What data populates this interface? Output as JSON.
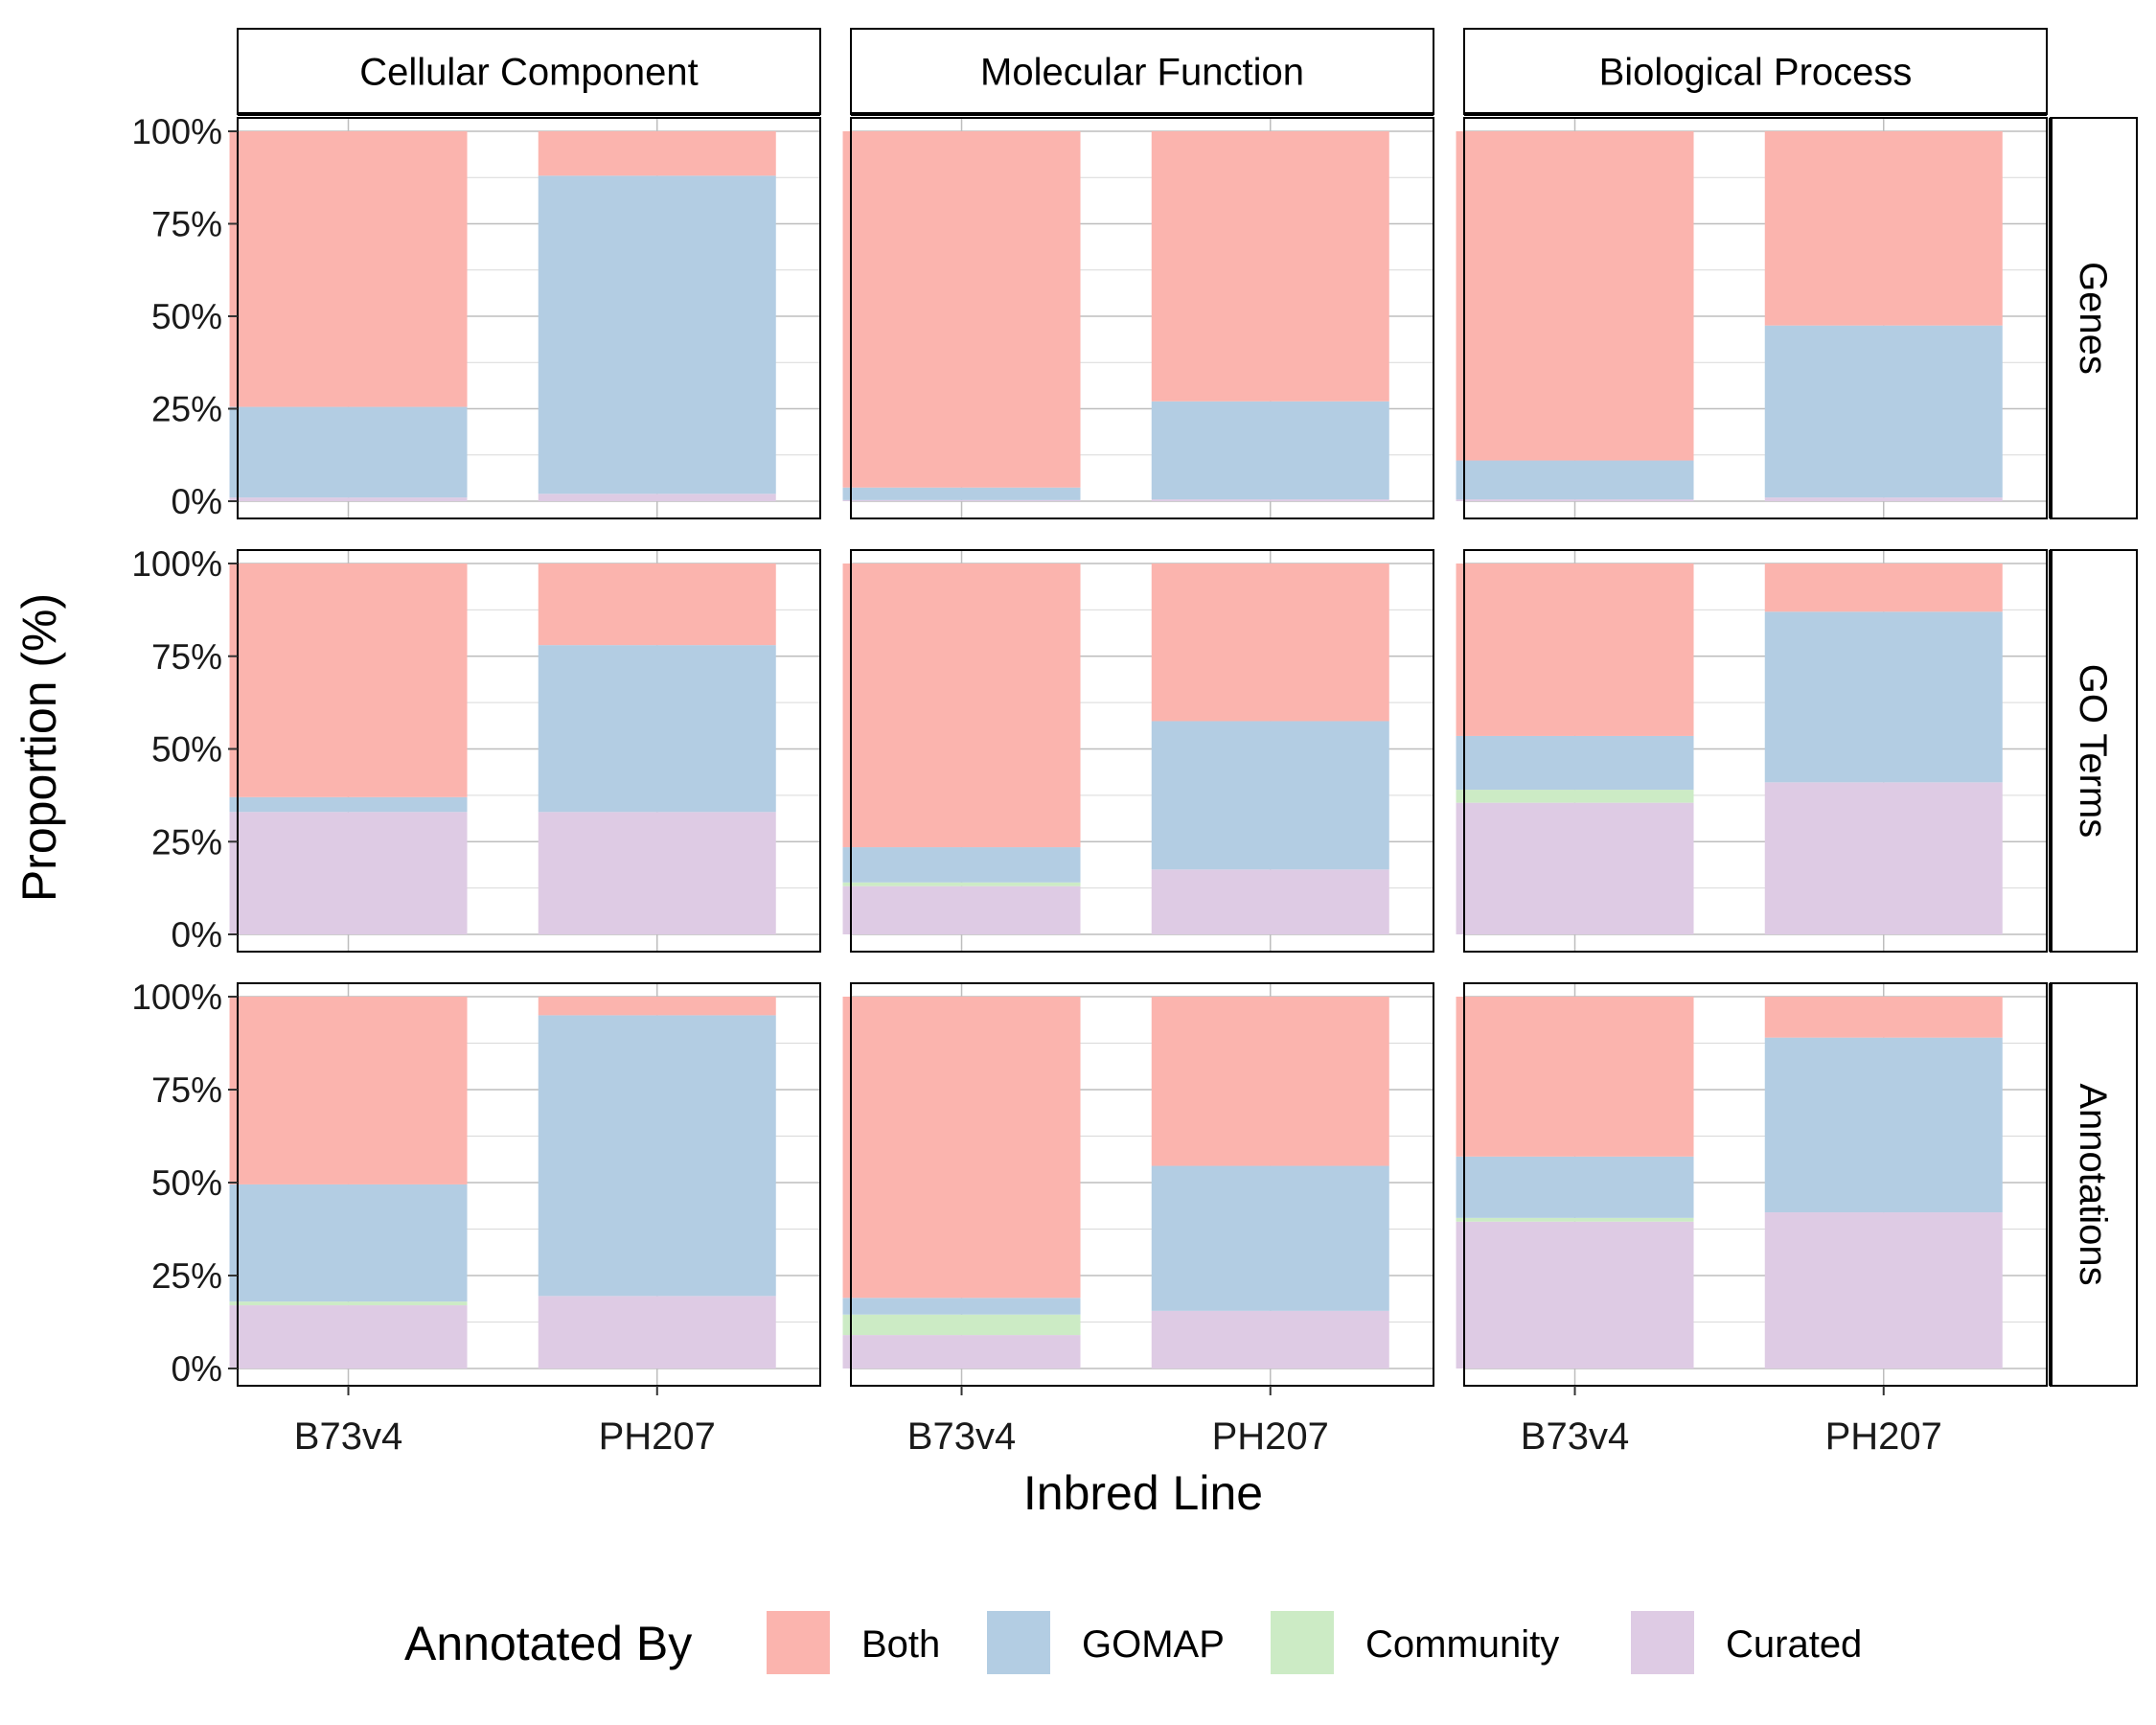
{
  "chart_data": {
    "type": "bar",
    "stacked": true,
    "percent": true,
    "xlabel": "Inbred Line",
    "ylabel": "Proportion (%)",
    "ylim": [
      0,
      100
    ],
    "yticks": [
      "0%",
      "25%",
      "50%",
      "75%",
      "100%"
    ],
    "categories": [
      "B73v4",
      "PH207"
    ],
    "facet_cols": [
      "Cellular Component",
      "Molecular Function",
      "Biological Process"
    ],
    "facet_rows": [
      "Genes",
      "GO Terms",
      "Annotations"
    ],
    "grid": true,
    "legend": {
      "title": "Annotated By",
      "position": "bottom",
      "items": [
        "Both",
        "GOMAP",
        "Community",
        "Curated"
      ]
    },
    "colors": {
      "Both": "#FBB4AE",
      "GOMAP": "#B3CDE3",
      "Community": "#CCEBC5",
      "Curated": "#DECBE4"
    },
    "stack_order": [
      "Curated",
      "Community",
      "GOMAP",
      "Both"
    ],
    "panels": [
      {
        "row": "Genes",
        "col": "Cellular Component",
        "bars": [
          {
            "category": "B73v4",
            "Curated": 1,
            "Community": 0,
            "GOMAP": 24.5,
            "Both": 74.5
          },
          {
            "category": "PH207",
            "Curated": 2,
            "Community": 0,
            "GOMAP": 86,
            "Both": 12
          }
        ]
      },
      {
        "row": "Genes",
        "col": "Molecular Function",
        "bars": [
          {
            "category": "B73v4",
            "Curated": 0.3,
            "Community": 0,
            "GOMAP": 3.4,
            "Both": 96.3
          },
          {
            "category": "PH207",
            "Curated": 0.5,
            "Community": 0,
            "GOMAP": 26.5,
            "Both": 73
          }
        ]
      },
      {
        "row": "Genes",
        "col": "Biological Process",
        "bars": [
          {
            "category": "B73v4",
            "Curated": 0.5,
            "Community": 0,
            "GOMAP": 10.5,
            "Both": 89
          },
          {
            "category": "PH207",
            "Curated": 1,
            "Community": 0,
            "GOMAP": 46.5,
            "Both": 52.5
          }
        ]
      },
      {
        "row": "GO Terms",
        "col": "Cellular Component",
        "bars": [
          {
            "category": "B73v4",
            "Curated": 33,
            "Community": 0,
            "GOMAP": 4,
            "Both": 63
          },
          {
            "category": "PH207",
            "Curated": 33,
            "Community": 0,
            "GOMAP": 45,
            "Both": 22
          }
        ]
      },
      {
        "row": "GO Terms",
        "col": "Molecular Function",
        "bars": [
          {
            "category": "B73v4",
            "Curated": 13,
            "Community": 1,
            "GOMAP": 9.5,
            "Both": 76.5
          },
          {
            "category": "PH207",
            "Curated": 17.5,
            "Community": 0,
            "GOMAP": 40,
            "Both": 42.5
          }
        ]
      },
      {
        "row": "GO Terms",
        "col": "Biological Process",
        "bars": [
          {
            "category": "B73v4",
            "Curated": 35.5,
            "Community": 3.5,
            "GOMAP": 14.5,
            "Both": 46.5
          },
          {
            "category": "PH207",
            "Curated": 41,
            "Community": 0,
            "GOMAP": 46,
            "Both": 13
          }
        ]
      },
      {
        "row": "Annotations",
        "col": "Cellular Component",
        "bars": [
          {
            "category": "B73v4",
            "Curated": 17,
            "Community": 1,
            "GOMAP": 31.5,
            "Both": 50.5
          },
          {
            "category": "PH207",
            "Curated": 19.5,
            "Community": 0,
            "GOMAP": 75.5,
            "Both": 5
          }
        ]
      },
      {
        "row": "Annotations",
        "col": "Molecular Function",
        "bars": [
          {
            "category": "B73v4",
            "Curated": 9,
            "Community": 5.5,
            "GOMAP": 4.5,
            "Both": 81
          },
          {
            "category": "PH207",
            "Curated": 15.5,
            "Community": 0,
            "GOMAP": 39,
            "Both": 45.5
          }
        ]
      },
      {
        "row": "Annotations",
        "col": "Biological Process",
        "bars": [
          {
            "category": "B73v4",
            "Curated": 39.5,
            "Community": 1,
            "GOMAP": 16.5,
            "Both": 43
          },
          {
            "category": "PH207",
            "Curated": 42,
            "Community": 0,
            "GOMAP": 47,
            "Both": 11
          }
        ]
      }
    ]
  }
}
